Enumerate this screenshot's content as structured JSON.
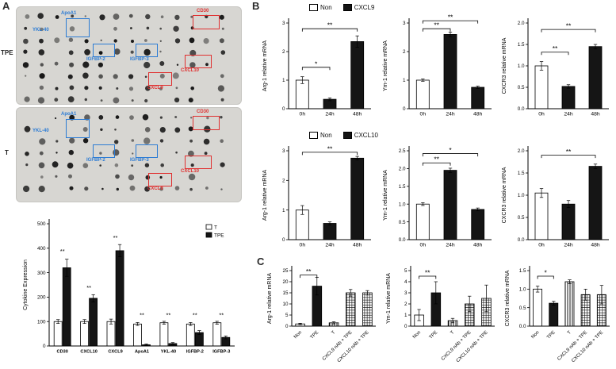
{
  "panelA": {
    "label": "A",
    "blot_tpe_label": "TPE",
    "blot_t_label": "T",
    "annotations": [
      {
        "label": "ApoA1",
        "color": "#2b7bd4"
      },
      {
        "label": "YKL-40",
        "color": "#2b7bd4"
      },
      {
        "label": "IGFBP-2",
        "color": "#2b7bd4"
      },
      {
        "label": "IGFBP-3",
        "color": "#2b7bd4"
      },
      {
        "label": "CD30",
        "color": "#e03030"
      },
      {
        "label": "CXCL10",
        "color": "#e03030"
      },
      {
        "label": "CXCL9",
        "color": "#e03030"
      }
    ]
  },
  "panelB": {
    "label": "B",
    "legends": [
      {
        "entries": [
          {
            "label": "Non",
            "style": "white"
          },
          {
            "label": "CXCL9",
            "style": "black"
          }
        ]
      },
      {
        "entries": [
          {
            "label": "Non",
            "style": "white"
          },
          {
            "label": "CXCL10",
            "style": "black"
          }
        ]
      }
    ]
  },
  "panelC": {
    "label": "C"
  },
  "chart_data": [
    {
      "id": "cytokine-expression",
      "type": "bar",
      "ylabel": "Cytokine Expression",
      "ylim": [
        0,
        500
      ],
      "yticks": [
        0,
        100,
        200,
        300,
        400,
        500
      ],
      "ytick_labels": [
        "0",
        "100",
        "200",
        "300",
        "400",
        "500"
      ],
      "categories": [
        "CD30",
        "CXCL10",
        "CXCL9",
        "ApoA1",
        "YKL-40",
        "IGFBP-2",
        "IGFBP-3"
      ],
      "series": [
        {
          "name": "T",
          "style": "white",
          "values": [
            100,
            100,
            100,
            90,
            95,
            90,
            95
          ],
          "errors": [
            8,
            8,
            10,
            6,
            6,
            6,
            6
          ]
        },
        {
          "name": "TPE",
          "style": "black",
          "values": [
            320,
            195,
            390,
            5,
            10,
            55,
            35
          ],
          "errors": [
            35,
            15,
            25,
            3,
            4,
            8,
            6
          ]
        }
      ],
      "stars": [
        {
          "category": 0,
          "y": 380,
          "text": "**"
        },
        {
          "category": 1,
          "y": 230,
          "text": "**"
        },
        {
          "category": 2,
          "y": 435,
          "text": "**"
        },
        {
          "category": 3,
          "y": 118,
          "text": "**"
        },
        {
          "category": 4,
          "y": 118,
          "text": "**"
        },
        {
          "category": 5,
          "y": 118,
          "text": "**"
        },
        {
          "category": 6,
          "y": 118,
          "text": "**"
        }
      ],
      "legend_position": "top-right"
    },
    {
      "id": "arg1-cxcl9",
      "type": "bar",
      "ylabel": "Arg-1 relative mRNA",
      "ylim": [
        0,
        3
      ],
      "yticks": [
        0,
        1,
        2,
        3
      ],
      "ytick_labels": [
        "0",
        "1",
        "2",
        "3"
      ],
      "categories": [
        "0h",
        "24h",
        "48h"
      ],
      "values": [
        1.0,
        0.33,
        2.35
      ],
      "errors": [
        0.12,
        0.05,
        0.2
      ],
      "styles": [
        "white",
        "black",
        "black"
      ],
      "brackets": [
        {
          "a": 0,
          "b": 1,
          "y": 1.45,
          "text": "*"
        },
        {
          "a": 0,
          "b": 2,
          "y": 2.8,
          "text": "**"
        }
      ]
    },
    {
      "id": "ym1-cxcl9",
      "type": "bar",
      "ylabel": "Ym-1 relative mRNA",
      "ylim": [
        0,
        3
      ],
      "yticks": [
        0,
        1,
        2,
        3
      ],
      "ytick_labels": [
        "0",
        "1",
        "2",
        "3"
      ],
      "categories": [
        "0h",
        "24h",
        "48h"
      ],
      "values": [
        1.0,
        2.6,
        0.75
      ],
      "errors": [
        0.04,
        0.08,
        0.04
      ],
      "styles": [
        "white",
        "black",
        "black"
      ],
      "brackets": [
        {
          "a": 0,
          "b": 1,
          "y": 2.8,
          "text": "**"
        },
        {
          "a": 0,
          "b": 2,
          "y": 3.08,
          "text": "**"
        }
      ]
    },
    {
      "id": "cxcr3-cxcl9",
      "type": "bar",
      "ylabel": "CXCR3 relative mRNA",
      "ylim": [
        0,
        2
      ],
      "yticks": [
        0,
        0.5,
        1,
        1.5,
        2
      ],
      "ytick_labels": [
        "0.0",
        "0.5",
        "1.0",
        "1.5",
        "2.0"
      ],
      "categories": [
        "0h",
        "24h",
        "48h"
      ],
      "values": [
        1.0,
        0.52,
        1.45
      ],
      "errors": [
        0.1,
        0.04,
        0.05
      ],
      "styles": [
        "white",
        "black",
        "black"
      ],
      "brackets": [
        {
          "a": 0,
          "b": 1,
          "y": 1.32,
          "text": "**"
        },
        {
          "a": 0,
          "b": 2,
          "y": 1.85,
          "text": "**"
        }
      ]
    },
    {
      "id": "arg1-cxcl10",
      "type": "bar",
      "ylabel": "Arg-1 relative mRNA",
      "ylim": [
        0,
        3
      ],
      "yticks": [
        0,
        1,
        2,
        3
      ],
      "ytick_labels": [
        "0",
        "1",
        "2",
        "3"
      ],
      "categories": [
        "0h",
        "24h",
        "48h"
      ],
      "values": [
        1.0,
        0.55,
        2.75
      ],
      "errors": [
        0.15,
        0.05,
        0.06
      ],
      "styles": [
        "white",
        "black",
        "black"
      ],
      "brackets": [
        {
          "a": 0,
          "b": 2,
          "y": 2.95,
          "text": "**"
        }
      ]
    },
    {
      "id": "ym1-cxcl10",
      "type": "bar",
      "ylabel": "Ym-1 relative mRNA",
      "ylim": [
        0,
        2.5
      ],
      "yticks": [
        0,
        0.5,
        1,
        1.5,
        2,
        2.5
      ],
      "ytick_labels": [
        "0.0",
        "0.5",
        "1.0",
        "1.5",
        "2.0",
        "2.5"
      ],
      "categories": [
        "0h",
        "24h",
        "48h"
      ],
      "values": [
        1.0,
        1.95,
        0.85
      ],
      "errors": [
        0.04,
        0.06,
        0.04
      ],
      "styles": [
        "white",
        "black",
        "black"
      ],
      "brackets": [
        {
          "a": 0,
          "b": 1,
          "y": 2.16,
          "text": "**"
        },
        {
          "a": 0,
          "b": 2,
          "y": 2.42,
          "text": "*"
        }
      ]
    },
    {
      "id": "cxcr3-cxcl10",
      "type": "bar",
      "ylabel": "CXCR3 relative mRNA",
      "ylim": [
        0,
        2
      ],
      "yticks": [
        0,
        0.5,
        1,
        1.5,
        2
      ],
      "ytick_labels": [
        "0.0",
        "0.5",
        "1.0",
        "1.5",
        "2.0"
      ],
      "categories": [
        "0h",
        "24h",
        "48h"
      ],
      "values": [
        1.05,
        0.8,
        1.65
      ],
      "errors": [
        0.1,
        0.08,
        0.05
      ],
      "styles": [
        "white",
        "black",
        "black"
      ],
      "brackets": [
        {
          "a": 0,
          "b": 2,
          "y": 1.9,
          "text": "**"
        }
      ]
    },
    {
      "id": "arg1-nab",
      "type": "bar",
      "ylabel": "Arg-1 relative mRNA",
      "ylim": [
        0,
        25
      ],
      "yticks": [
        0,
        5,
        10,
        15,
        20,
        25
      ],
      "ytick_labels": [
        "0",
        "5",
        "10",
        "15",
        "20",
        "25"
      ],
      "categories": [
        "Non",
        "TPE",
        "T",
        "CXCL9 nAb + TPE",
        "CXCL10 nAb + TPE"
      ],
      "values": [
        1.0,
        18,
        1.5,
        15,
        15
      ],
      "errors": [
        0.3,
        4,
        0.5,
        1.5,
        1
      ],
      "styles": [
        "white",
        "black",
        "vstripe",
        "check",
        "check"
      ],
      "rotate_labels": true,
      "brackets": [
        {
          "a": 0,
          "b": 1,
          "y": 23,
          "text": "**"
        }
      ]
    },
    {
      "id": "ym1-nab",
      "type": "bar",
      "ylabel": "Ym-1 relative mRNA",
      "ylim": [
        0,
        5
      ],
      "yticks": [
        0,
        1,
        2,
        3,
        4,
        5
      ],
      "ytick_labels": [
        "0",
        "1",
        "2",
        "3",
        "4",
        "5"
      ],
      "categories": [
        "Non",
        "TPE",
        "T",
        "CXCL9 nAb + TPE",
        "CXCL10 nAb + TPE"
      ],
      "values": [
        1.0,
        3.0,
        0.5,
        2.0,
        2.5
      ],
      "errors": [
        0.5,
        1.0,
        0.2,
        0.7,
        1.2
      ],
      "styles": [
        "white",
        "black",
        "vstripe",
        "check",
        "check"
      ],
      "rotate_labels": true,
      "brackets": [
        {
          "a": 0,
          "b": 1,
          "y": 4.5,
          "text": "**"
        }
      ]
    },
    {
      "id": "cxcr3-nab",
      "type": "bar",
      "ylabel": "CXCR3 relative mRNA",
      "ylim": [
        0,
        1.5
      ],
      "yticks": [
        0,
        0.5,
        1,
        1.5
      ],
      "ytick_labels": [
        "0.0",
        "0.5",
        "1.0",
        "1.5"
      ],
      "categories": [
        "Non",
        "TPE",
        "T",
        "CXCL9 nAb + TPE",
        "CXCL10 nAb + TPE"
      ],
      "values": [
        1.0,
        0.62,
        1.2,
        0.85,
        0.85
      ],
      "errors": [
        0.08,
        0.05,
        0.05,
        0.15,
        0.25
      ],
      "styles": [
        "white",
        "black",
        "vstripe",
        "check",
        "check"
      ],
      "rotate_labels": true,
      "brackets": [
        {
          "a": 0,
          "b": 1,
          "y": 1.35,
          "text": "*"
        }
      ]
    }
  ]
}
